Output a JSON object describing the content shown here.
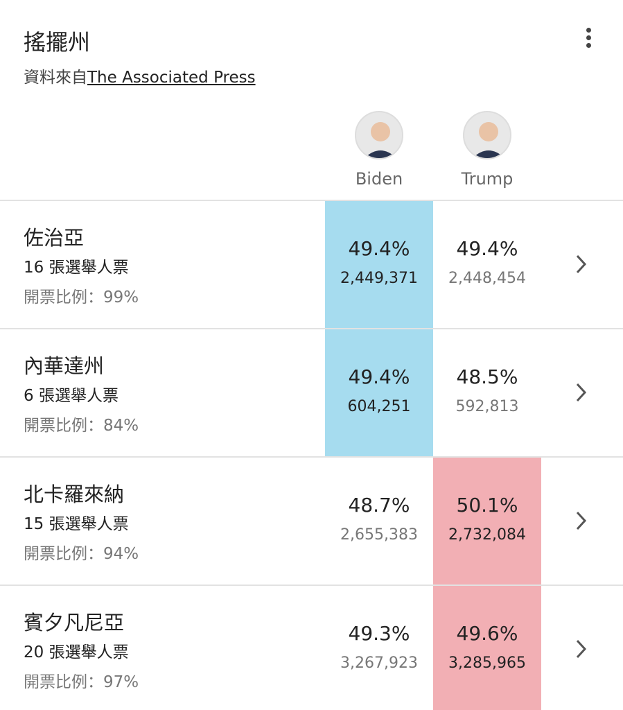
{
  "header": {
    "title": "搖擺州",
    "source_prefix": "資料來自",
    "source_link": "The Associated Press"
  },
  "candidates": [
    {
      "name": "Biden",
      "color": "#a6dcef"
    },
    {
      "name": "Trump",
      "color": "#f2afb4"
    }
  ],
  "rows": [
    {
      "state": "佐治亞",
      "electoral_votes": "16 張選舉人票",
      "reporting": "開票比例：99%",
      "leading": 0,
      "results": [
        {
          "percent": "49.4%",
          "votes": "2,449,371"
        },
        {
          "percent": "49.4%",
          "votes": "2,448,454"
        }
      ]
    },
    {
      "state": "內華達州",
      "electoral_votes": "6 張選舉人票",
      "reporting": "開票比例：84%",
      "leading": 0,
      "results": [
        {
          "percent": "49.4%",
          "votes": "604,251"
        },
        {
          "percent": "48.5%",
          "votes": "592,813"
        }
      ]
    },
    {
      "state": "北卡羅來納",
      "electoral_votes": "15 張選舉人票",
      "reporting": "開票比例：94%",
      "leading": 1,
      "results": [
        {
          "percent": "48.7%",
          "votes": "2,655,383"
        },
        {
          "percent": "50.1%",
          "votes": "2,732,084"
        }
      ]
    },
    {
      "state": "賓夕凡尼亞",
      "electoral_votes": "20 張選舉人票",
      "reporting": "開票比例：97%",
      "leading": 1,
      "results": [
        {
          "percent": "49.3%",
          "votes": "3,267,923"
        },
        {
          "percent": "49.6%",
          "votes": "3,285,965"
        }
      ]
    }
  ]
}
